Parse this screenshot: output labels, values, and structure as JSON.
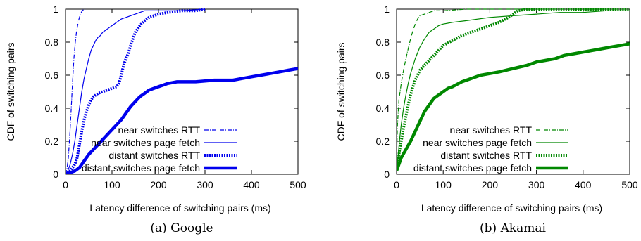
{
  "chart_data": [
    {
      "type": "line",
      "caption": "(a) Google",
      "xlabel": "Latency difference of switching pairs (ms)",
      "ylabel": "CDF of switching pairs",
      "xlim": [
        0,
        500
      ],
      "ylim": [
        0,
        1
      ],
      "xticks": [
        0,
        100,
        200,
        300,
        400,
        500
      ],
      "yticks": [
        0,
        0.2,
        0.4,
        0.6,
        0.8,
        1
      ],
      "legend_position": "bottom-right",
      "color": "#0000ee",
      "series": [
        {
          "name": "near switches RTT",
          "style": "dash-dot-thin",
          "points": [
            [
              0,
              0
            ],
            [
              3,
              0.03
            ],
            [
              6,
              0.1
            ],
            [
              9,
              0.22
            ],
            [
              12,
              0.38
            ],
            [
              15,
              0.55
            ],
            [
              18,
              0.7
            ],
            [
              21,
              0.8
            ],
            [
              24,
              0.87
            ],
            [
              28,
              0.93
            ],
            [
              32,
              0.97
            ],
            [
              36,
              0.99
            ],
            [
              40,
              1.0
            ],
            [
              45,
              1.0
            ]
          ]
        },
        {
          "name": "near switches page fetch",
          "style": "solid-thin",
          "points": [
            [
              0,
              0
            ],
            [
              5,
              0.02
            ],
            [
              10,
              0.06
            ],
            [
              15,
              0.12
            ],
            [
              20,
              0.2
            ],
            [
              25,
              0.3
            ],
            [
              30,
              0.4
            ],
            [
              35,
              0.5
            ],
            [
              40,
              0.58
            ],
            [
              45,
              0.64
            ],
            [
              50,
              0.7
            ],
            [
              55,
              0.75
            ],
            [
              60,
              0.78
            ],
            [
              65,
              0.81
            ],
            [
              70,
              0.83
            ],
            [
              75,
              0.84
            ],
            [
              80,
              0.86
            ],
            [
              85,
              0.87
            ],
            [
              90,
              0.88
            ],
            [
              100,
              0.9
            ],
            [
              110,
              0.92
            ],
            [
              120,
              0.94
            ],
            [
              130,
              0.95
            ],
            [
              140,
              0.96
            ],
            [
              150,
              0.97
            ],
            [
              160,
              0.98
            ],
            [
              170,
              0.99
            ],
            [
              200,
              0.99
            ],
            [
              250,
              0.99
            ],
            [
              300,
              1.0
            ]
          ]
        },
        {
          "name": "distant switches RTT",
          "style": "dotted-thick",
          "points": [
            [
              0,
              0
            ],
            [
              10,
              0.02
            ],
            [
              20,
              0.06
            ],
            [
              25,
              0.1
            ],
            [
              30,
              0.18
            ],
            [
              35,
              0.26
            ],
            [
              40,
              0.33
            ],
            [
              45,
              0.38
            ],
            [
              50,
              0.42
            ],
            [
              55,
              0.45
            ],
            [
              60,
              0.47
            ],
            [
              70,
              0.49
            ],
            [
              80,
              0.5
            ],
            [
              90,
              0.51
            ],
            [
              100,
              0.52
            ],
            [
              110,
              0.53
            ],
            [
              115,
              0.55
            ],
            [
              120,
              0.6
            ],
            [
              125,
              0.66
            ],
            [
              130,
              0.7
            ],
            [
              135,
              0.73
            ],
            [
              140,
              0.78
            ],
            [
              145,
              0.82
            ],
            [
              150,
              0.86
            ],
            [
              155,
              0.88
            ],
            [
              160,
              0.9
            ],
            [
              170,
              0.93
            ],
            [
              180,
              0.95
            ],
            [
              200,
              0.97
            ],
            [
              220,
              0.98
            ],
            [
              250,
              0.99
            ],
            [
              280,
              0.99
            ],
            [
              300,
              1.0
            ]
          ]
        },
        {
          "name": "distant switches page fetch",
          "style": "solid-thick",
          "points": [
            [
              0,
              0
            ],
            [
              10,
              0.01
            ],
            [
              20,
              0.02
            ],
            [
              30,
              0.04
            ],
            [
              40,
              0.08
            ],
            [
              50,
              0.12
            ],
            [
              60,
              0.15
            ],
            [
              70,
              0.18
            ],
            [
              80,
              0.21
            ],
            [
              90,
              0.24
            ],
            [
              100,
              0.27
            ],
            [
              110,
              0.3
            ],
            [
              120,
              0.33
            ],
            [
              130,
              0.37
            ],
            [
              140,
              0.41
            ],
            [
              150,
              0.44
            ],
            [
              160,
              0.47
            ],
            [
              170,
              0.49
            ],
            [
              180,
              0.51
            ],
            [
              190,
              0.52
            ],
            [
              200,
              0.53
            ],
            [
              210,
              0.54
            ],
            [
              220,
              0.55
            ],
            [
              240,
              0.56
            ],
            [
              280,
              0.56
            ],
            [
              320,
              0.57
            ],
            [
              360,
              0.57
            ],
            [
              380,
              0.58
            ],
            [
              400,
              0.59
            ],
            [
              420,
              0.6
            ],
            [
              440,
              0.61
            ],
            [
              460,
              0.62
            ],
            [
              480,
              0.63
            ],
            [
              500,
              0.64
            ]
          ]
        }
      ]
    },
    {
      "type": "line",
      "caption": "(b) Akamai",
      "xlabel": "Latency difference of switching pairs (ms)",
      "ylabel": "CDF of switching pairs",
      "xlim": [
        0,
        500
      ],
      "ylim": [
        0,
        1
      ],
      "xticks": [
        0,
        100,
        200,
        300,
        400,
        500
      ],
      "yticks": [
        0,
        0.2,
        0.4,
        0.6,
        0.8,
        1
      ],
      "legend_position": "bottom-right",
      "color": "#008800",
      "series": [
        {
          "name": "near switches RTT",
          "style": "dash-dot-thin",
          "points": [
            [
              0,
              0.1
            ],
            [
              2,
              0.3
            ],
            [
              5,
              0.45
            ],
            [
              10,
              0.55
            ],
            [
              15,
              0.63
            ],
            [
              20,
              0.7
            ],
            [
              25,
              0.76
            ],
            [
              30,
              0.82
            ],
            [
              35,
              0.87
            ],
            [
              40,
              0.91
            ],
            [
              45,
              0.94
            ],
            [
              50,
              0.96
            ],
            [
              60,
              0.97
            ],
            [
              70,
              0.98
            ],
            [
              80,
              0.99
            ],
            [
              100,
              0.99
            ],
            [
              150,
              1.0
            ],
            [
              200,
              1.0
            ],
            [
              300,
              1.0
            ],
            [
              400,
              1.0
            ],
            [
              500,
              1.0
            ]
          ]
        },
        {
          "name": "near switches page fetch",
          "style": "solid-thin",
          "points": [
            [
              0,
              0.02
            ],
            [
              3,
              0.1
            ],
            [
              6,
              0.2
            ],
            [
              10,
              0.3
            ],
            [
              15,
              0.4
            ],
            [
              20,
              0.48
            ],
            [
              25,
              0.55
            ],
            [
              30,
              0.61
            ],
            [
              40,
              0.7
            ],
            [
              50,
              0.77
            ],
            [
              60,
              0.82
            ],
            [
              70,
              0.86
            ],
            [
              80,
              0.88
            ],
            [
              90,
              0.9
            ],
            [
              100,
              0.91
            ],
            [
              120,
              0.92
            ],
            [
              150,
              0.93
            ],
            [
              200,
              0.95
            ],
            [
              250,
              0.96
            ],
            [
              300,
              0.97
            ],
            [
              350,
              0.98
            ],
            [
              400,
              0.98
            ],
            [
              450,
              0.99
            ],
            [
              500,
              0.99
            ]
          ]
        },
        {
          "name": "distant switches RTT",
          "style": "dotted-thick",
          "points": [
            [
              0,
              0.02
            ],
            [
              3,
              0.07
            ],
            [
              6,
              0.14
            ],
            [
              10,
              0.2
            ],
            [
              15,
              0.28
            ],
            [
              20,
              0.35
            ],
            [
              25,
              0.42
            ],
            [
              30,
              0.48
            ],
            [
              35,
              0.53
            ],
            [
              40,
              0.57
            ],
            [
              45,
              0.6
            ],
            [
              50,
              0.63
            ],
            [
              60,
              0.66
            ],
            [
              70,
              0.69
            ],
            [
              80,
              0.72
            ],
            [
              90,
              0.75
            ],
            [
              100,
              0.78
            ],
            [
              120,
              0.81
            ],
            [
              140,
              0.84
            ],
            [
              160,
              0.86
            ],
            [
              180,
              0.88
            ],
            [
              200,
              0.9
            ],
            [
              220,
              0.92
            ],
            [
              240,
              0.95
            ],
            [
              250,
              0.97
            ],
            [
              260,
              0.99
            ],
            [
              280,
              1.0
            ],
            [
              300,
              1.0
            ],
            [
              400,
              1.0
            ],
            [
              500,
              1.0
            ]
          ]
        },
        {
          "name": "distant switches page fetch",
          "style": "solid-thick",
          "points": [
            [
              0,
              0.02
            ],
            [
              5,
              0.06
            ],
            [
              10,
              0.1
            ],
            [
              20,
              0.15
            ],
            [
              30,
              0.2
            ],
            [
              40,
              0.26
            ],
            [
              50,
              0.32
            ],
            [
              60,
              0.38
            ],
            [
              70,
              0.42
            ],
            [
              80,
              0.46
            ],
            [
              90,
              0.48
            ],
            [
              100,
              0.5
            ],
            [
              110,
              0.52
            ],
            [
              120,
              0.53
            ],
            [
              140,
              0.56
            ],
            [
              160,
              0.58
            ],
            [
              180,
              0.6
            ],
            [
              200,
              0.61
            ],
            [
              220,
              0.62
            ],
            [
              250,
              0.64
            ],
            [
              280,
              0.66
            ],
            [
              300,
              0.68
            ],
            [
              320,
              0.69
            ],
            [
              340,
              0.7
            ],
            [
              360,
              0.72
            ],
            [
              380,
              0.73
            ],
            [
              400,
              0.74
            ],
            [
              420,
              0.75
            ],
            [
              440,
              0.76
            ],
            [
              460,
              0.77
            ],
            [
              480,
              0.78
            ],
            [
              500,
              0.79
            ]
          ]
        }
      ]
    }
  ]
}
